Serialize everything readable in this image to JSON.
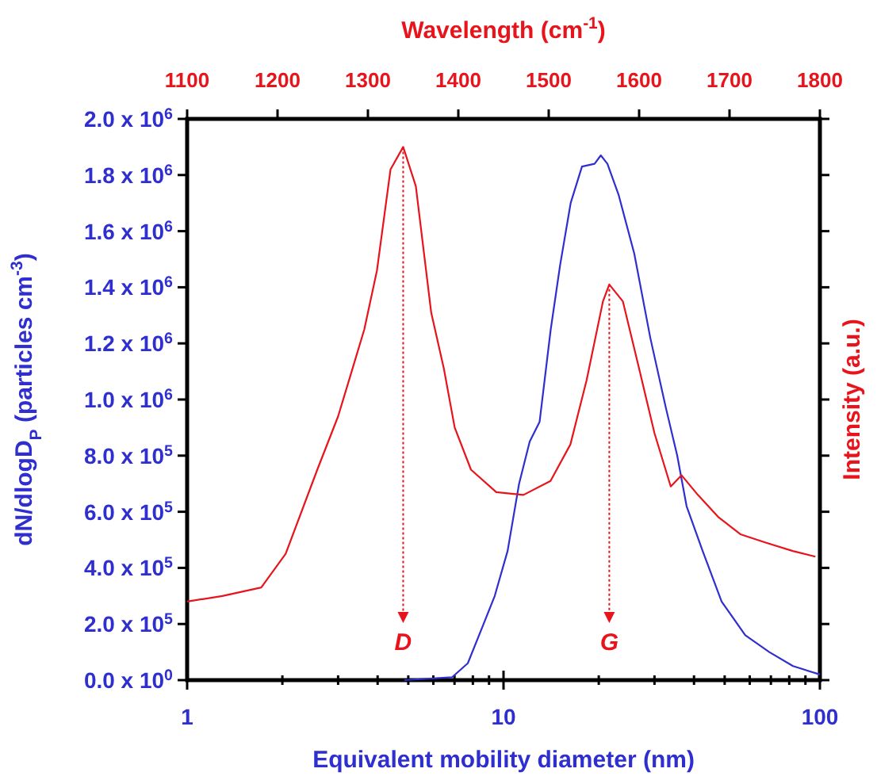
{
  "chart_data": {
    "type": "line",
    "xlabel": "Equivalent mobility diameter (nm)",
    "ylabel": "dN/dlogD$_{P}$ (particles cm$^{-3}$)",
    "x2label": "Wavelength (cm$^{-1}$)",
    "y2label": "Intensity (a.u.)",
    "log": "x",
    "xlim": [
      1,
      100
    ],
    "xticks": [
      1,
      {
        "value": 2,
        "label": null
      },
      {
        "value": 3,
        "label": null
      },
      {
        "value": 4,
        "label": null
      },
      {
        "value": 5,
        "label": null
      },
      {
        "value": 6,
        "label": null
      },
      {
        "value": 7,
        "label": null
      },
      {
        "value": 8,
        "label": null
      },
      {
        "value": 9,
        "label": null
      },
      10,
      {
        "value": 20,
        "label": null
      },
      {
        "value": 30,
        "label": null
      },
      {
        "value": 40,
        "label": null
      },
      {
        "value": 50,
        "label": null
      },
      {
        "value": 60,
        "label": null
      },
      {
        "value": 70,
        "label": null
      },
      {
        "value": 80,
        "label": null
      },
      {
        "value": 90,
        "label": null
      },
      100
    ],
    "x2lim": [
      1100,
      1800
    ],
    "x2ticks": [
      1100,
      1200,
      1300,
      1400,
      1500,
      1600,
      1700,
      1800
    ],
    "ylim": [
      0,
      2000000
    ],
    "yticks": [
      {
        "value": 0,
        "label": "0.0 x 10$^{0}$"
      },
      {
        "value": 200000,
        "label": "2.0 x 10$^{5}$"
      },
      {
        "value": 400000,
        "label": "4.0 x 10$^{5}$"
      },
      {
        "value": 600000,
        "label": "6.0 x 10$^{5}$"
      },
      {
        "value": 800000,
        "label": "8.0 x 10$^{5}$"
      },
      {
        "value": 1000000,
        "label": "1.0 x 10$^{6}$"
      },
      {
        "value": 1200000,
        "label": "1.2 x 10$^{6}$"
      },
      {
        "value": 1400000,
        "label": "1.4 x 10$^{6}$"
      },
      {
        "value": 1600000,
        "label": "1.6 x 10$^{6}$"
      },
      {
        "value": 1800000,
        "label": "1.8 x 10$^{6}$"
      },
      {
        "value": 2000000,
        "label": "2.0 x 10$^{6}$"
      }
    ],
    "grid": false,
    "marker": "none",
    "series": [
      {
        "color": "#2f2fd0",
        "x": [
          4.86,
          6.87,
          7.71,
          8.65,
          9.38,
          10.3,
          11.2,
          12.1,
          13.0,
          14.1,
          15.1,
          16.3,
          17.7,
          19.4,
          20.3,
          21.3,
          23.1,
          25.9,
          29.1,
          32.6,
          35.4,
          37.9,
          42.6,
          48.9,
          58.1,
          69.2,
          82.2,
          100
        ],
        "values": [
          0,
          10000,
          60000,
          200000,
          300000,
          460000,
          700000,
          850000,
          920000,
          1250000,
          1480000,
          1700000,
          1830000,
          1840000,
          1870000,
          1840000,
          1730000,
          1520000,
          1220000,
          970000,
          800000,
          620000,
          460000,
          280000,
          160000,
          100000,
          50000,
          20000
        ]
      },
      {
        "color": "#e8141c",
        "axis": "x2",
        "x": [
          1100,
          1139,
          1182,
          1209,
          1244,
          1267,
          1282,
          1296,
          1310,
          1325,
          1339,
          1353,
          1370,
          1384,
          1396,
          1414,
          1442,
          1472,
          1502,
          1524,
          1542,
          1560,
          1567,
          1582,
          1600,
          1617,
          1635,
          1647,
          1665,
          1688,
          1712,
          1740,
          1770,
          1795
        ],
        "values": [
          280000,
          300000,
          330000,
          450000,
          750000,
          940000,
          1100000,
          1250000,
          1460000,
          1820000,
          1900000,
          1760000,
          1310000,
          1110000,
          900000,
          750000,
          670000,
          660000,
          710000,
          840000,
          1070000,
          1350000,
          1410000,
          1350000,
          1110000,
          880000,
          690000,
          730000,
          660000,
          580000,
          520000,
          490000,
          460000,
          440000
        ]
      }
    ],
    "ref_lines": [
      {
        "axis": "x2",
        "value": 1339,
        "label": "D",
        "color": "#e8141c",
        "line_style": "dotted"
      },
      {
        "axis": "x2",
        "value": 1567,
        "label": "G",
        "color": "#e8141c",
        "line_style": "dotted"
      }
    ]
  }
}
